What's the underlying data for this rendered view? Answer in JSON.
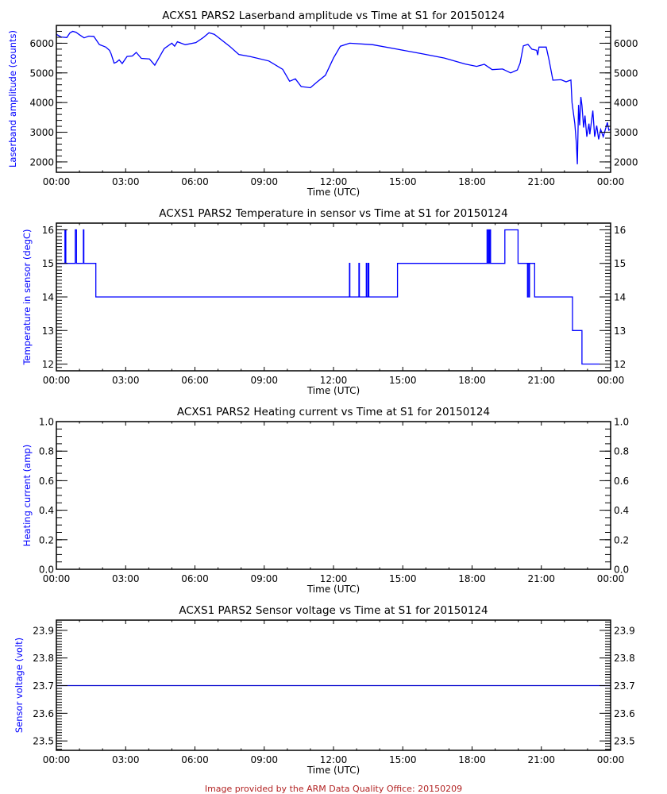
{
  "footer": "Image provided by the ARM Data Quality Office: 20150209",
  "colors": {
    "series": "#0000ff",
    "axis": "#000000",
    "ylabel": "#0000ff",
    "footer": "#b22222"
  },
  "chart_data": [
    {
      "type": "line",
      "title": "ACXS1 PARS2 Laserband amplitude vs Time at S1 for 20150124",
      "xlabel": "Time (UTC)",
      "ylabel": "Laserband amplitude (counts)",
      "xlim": [
        0,
        24
      ],
      "xticks": [
        "00:00",
        "03:00",
        "06:00",
        "09:00",
        "12:00",
        "15:00",
        "18:00",
        "21:00",
        "00:00"
      ],
      "ylim": [
        1650,
        6600
      ],
      "yticks": [
        2000,
        3000,
        4000,
        5000,
        6000
      ],
      "ytick_labels": [
        "2000",
        "3000",
        "4000",
        "5000",
        "6000"
      ],
      "yminor": 200,
      "series": [
        {
          "name": "Laserband amplitude",
          "points": [
            [
              0,
              6300
            ],
            [
              0.2,
              6210
            ],
            [
              0.45,
              6190
            ],
            [
              0.59,
              6350
            ],
            [
              0.71,
              6400
            ],
            [
              0.85,
              6370
            ],
            [
              1.0,
              6285
            ],
            [
              1.2,
              6180
            ],
            [
              1.4,
              6240
            ],
            [
              1.62,
              6230
            ],
            [
              1.86,
              5955
            ],
            [
              2.14,
              5870
            ],
            [
              2.3,
              5760
            ],
            [
              2.37,
              5645
            ],
            [
              2.5,
              5330
            ],
            [
              2.6,
              5360
            ],
            [
              2.72,
              5440
            ],
            [
              2.85,
              5315
            ],
            [
              3.06,
              5555
            ],
            [
              3.29,
              5570
            ],
            [
              3.46,
              5690
            ],
            [
              3.68,
              5490
            ],
            [
              4.03,
              5470
            ],
            [
              4.26,
              5260
            ],
            [
              4.44,
              5500
            ],
            [
              4.67,
              5820
            ],
            [
              5.0,
              6000
            ],
            [
              5.12,
              5900
            ],
            [
              5.24,
              6050
            ],
            [
              5.58,
              5950
            ],
            [
              6.04,
              6020
            ],
            [
              6.38,
              6200
            ],
            [
              6.61,
              6355
            ],
            [
              6.84,
              6300
            ],
            [
              7.0,
              6200
            ],
            [
              7.5,
              5900
            ],
            [
              7.9,
              5620
            ],
            [
              8.4,
              5550
            ],
            [
              9.2,
              5400
            ],
            [
              9.8,
              5120
            ],
            [
              10.1,
              4720
            ],
            [
              10.35,
              4800
            ],
            [
              10.6,
              4540
            ],
            [
              11.0,
              4500
            ],
            [
              11.3,
              4700
            ],
            [
              11.65,
              4920
            ],
            [
              12.0,
              5500
            ],
            [
              12.3,
              5900
            ],
            [
              12.7,
              6000
            ],
            [
              13.7,
              5950
            ],
            [
              14.75,
              5800
            ],
            [
              15.8,
              5650
            ],
            [
              16.8,
              5500
            ],
            [
              17.7,
              5300
            ],
            [
              18.2,
              5220
            ],
            [
              18.53,
              5290
            ],
            [
              18.87,
              5110
            ],
            [
              19.32,
              5130
            ],
            [
              19.67,
              5000
            ],
            [
              19.96,
              5100
            ],
            [
              20.08,
              5330
            ],
            [
              20.22,
              5910
            ],
            [
              20.42,
              5960
            ],
            [
              20.59,
              5800
            ],
            [
              20.8,
              5760
            ],
            [
              20.84,
              5600
            ],
            [
              20.9,
              5870
            ],
            [
              21.21,
              5870
            ],
            [
              21.34,
              5420
            ],
            [
              21.5,
              4755
            ],
            [
              21.85,
              4770
            ],
            [
              22.07,
              4700
            ],
            [
              22.28,
              4760
            ],
            [
              22.33,
              4000
            ],
            [
              22.45,
              3290
            ],
            [
              22.52,
              2580
            ],
            [
              22.56,
              1920
            ],
            [
              22.61,
              3920
            ],
            [
              22.66,
              3230
            ],
            [
              22.71,
              4190
            ],
            [
              22.76,
              3900
            ],
            [
              22.83,
              3160
            ],
            [
              22.89,
              3560
            ],
            [
              22.97,
              2850
            ],
            [
              23.06,
              3290
            ],
            [
              23.1,
              2930
            ],
            [
              23.23,
              3730
            ],
            [
              23.31,
              2850
            ],
            [
              23.4,
              3220
            ],
            [
              23.48,
              2760
            ],
            [
              23.57,
              3090
            ],
            [
              23.68,
              2850
            ],
            [
              23.8,
              3170
            ],
            [
              23.86,
              3330
            ],
            [
              23.92,
              3070
            ],
            [
              24,
              3100
            ]
          ]
        }
      ]
    },
    {
      "type": "line",
      "title": "ACXS1 PARS2 Temperature in sensor vs Time at S1 for 20150124",
      "xlabel": "Time (UTC)",
      "ylabel": "Temperature in sensor (degC)",
      "xlim": [
        0,
        24
      ],
      "xticks": [
        "00:00",
        "03:00",
        "06:00",
        "09:00",
        "12:00",
        "15:00",
        "18:00",
        "21:00",
        "00:00"
      ],
      "ylim": [
        11.8,
        16.2
      ],
      "yticks": [
        12,
        13,
        14,
        15,
        16
      ],
      "ytick_labels": [
        "12",
        "13",
        "14",
        "15",
        "16"
      ],
      "yminor": 0.1,
      "series": [
        {
          "name": "Temperature in sensor",
          "points": [
            [
              0,
              15
            ],
            [
              0.37,
              15
            ],
            [
              0.37,
              16
            ],
            [
              0.41,
              16
            ],
            [
              0.41,
              15
            ],
            [
              0.82,
              15
            ],
            [
              0.82,
              16
            ],
            [
              0.87,
              16
            ],
            [
              0.87,
              15
            ],
            [
              1.17,
              15
            ],
            [
              1.17,
              16
            ],
            [
              1.19,
              16
            ],
            [
              1.19,
              15
            ],
            [
              1.71,
              15
            ],
            [
              1.71,
              14
            ],
            [
              12.69,
              14
            ],
            [
              12.69,
              15
            ],
            [
              12.71,
              15
            ],
            [
              12.71,
              14
            ],
            [
              13.1,
              14
            ],
            [
              13.1,
              15
            ],
            [
              13.12,
              15
            ],
            [
              13.12,
              14
            ],
            [
              13.42,
              14
            ],
            [
              13.42,
              15
            ],
            [
              13.44,
              15
            ],
            [
              13.44,
              14
            ],
            [
              13.5,
              14
            ],
            [
              13.5,
              15
            ],
            [
              13.53,
              15
            ],
            [
              13.53,
              14
            ],
            [
              14.77,
              14
            ],
            [
              14.77,
              15
            ],
            [
              18.65,
              15
            ],
            [
              18.65,
              16
            ],
            [
              18.67,
              16
            ],
            [
              18.67,
              15
            ],
            [
              18.72,
              15
            ],
            [
              18.72,
              16
            ],
            [
              18.74,
              16
            ],
            [
              18.74,
              15
            ],
            [
              18.78,
              15
            ],
            [
              18.78,
              16
            ],
            [
              18.8,
              16
            ],
            [
              18.8,
              15
            ],
            [
              19.42,
              15
            ],
            [
              19.42,
              16
            ],
            [
              19.99,
              16
            ],
            [
              19.99,
              15
            ],
            [
              20.4,
              15
            ],
            [
              20.4,
              14
            ],
            [
              20.42,
              14
            ],
            [
              20.42,
              15
            ],
            [
              20.47,
              15
            ],
            [
              20.47,
              14
            ],
            [
              20.49,
              14
            ],
            [
              20.49,
              15
            ],
            [
              20.71,
              15
            ],
            [
              20.71,
              14
            ],
            [
              22.35,
              14
            ],
            [
              22.35,
              13
            ],
            [
              22.76,
              13
            ],
            [
              22.76,
              12
            ],
            [
              23.52,
              12
            ]
          ]
        }
      ]
    },
    {
      "type": "line",
      "title": "ACXS1 PARS2 Heating current vs Time at S1 for 20150124",
      "xlabel": "Time (UTC)",
      "ylabel": "Heating current (amp)",
      "xlim": [
        0,
        24
      ],
      "xticks": [
        "00:00",
        "03:00",
        "06:00",
        "09:00",
        "12:00",
        "15:00",
        "18:00",
        "21:00",
        "00:00"
      ],
      "ylim": [
        0,
        1
      ],
      "yticks": [
        0,
        0.2,
        0.4,
        0.6,
        0.8,
        1.0
      ],
      "ytick_labels": [
        "0.0",
        "0.2",
        "0.4",
        "0.6",
        "0.8",
        "1.0"
      ],
      "yminor": 0.05,
      "series": []
    },
    {
      "type": "line",
      "title": "ACXS1 PARS2 Sensor voltage vs Time at S1 for 20150124",
      "xlabel": "Time (UTC)",
      "ylabel": "Sensor voltage (volt)",
      "xlim": [
        0,
        24
      ],
      "xticks": [
        "00:00",
        "03:00",
        "06:00",
        "09:00",
        "12:00",
        "15:00",
        "18:00",
        "21:00",
        "00:00"
      ],
      "ylim": [
        23.466,
        23.937
      ],
      "yticks": [
        23.5,
        23.6,
        23.7,
        23.8,
        23.9
      ],
      "ytick_labels": [
        "23.5",
        "23.6",
        "23.7",
        "23.8",
        "23.9"
      ],
      "yminor": 0.01,
      "series": [
        {
          "name": "Sensor voltage",
          "color": "#0000cc",
          "points": [
            [
              0,
              23.7
            ],
            [
              24,
              23.7
            ]
          ]
        }
      ]
    }
  ]
}
